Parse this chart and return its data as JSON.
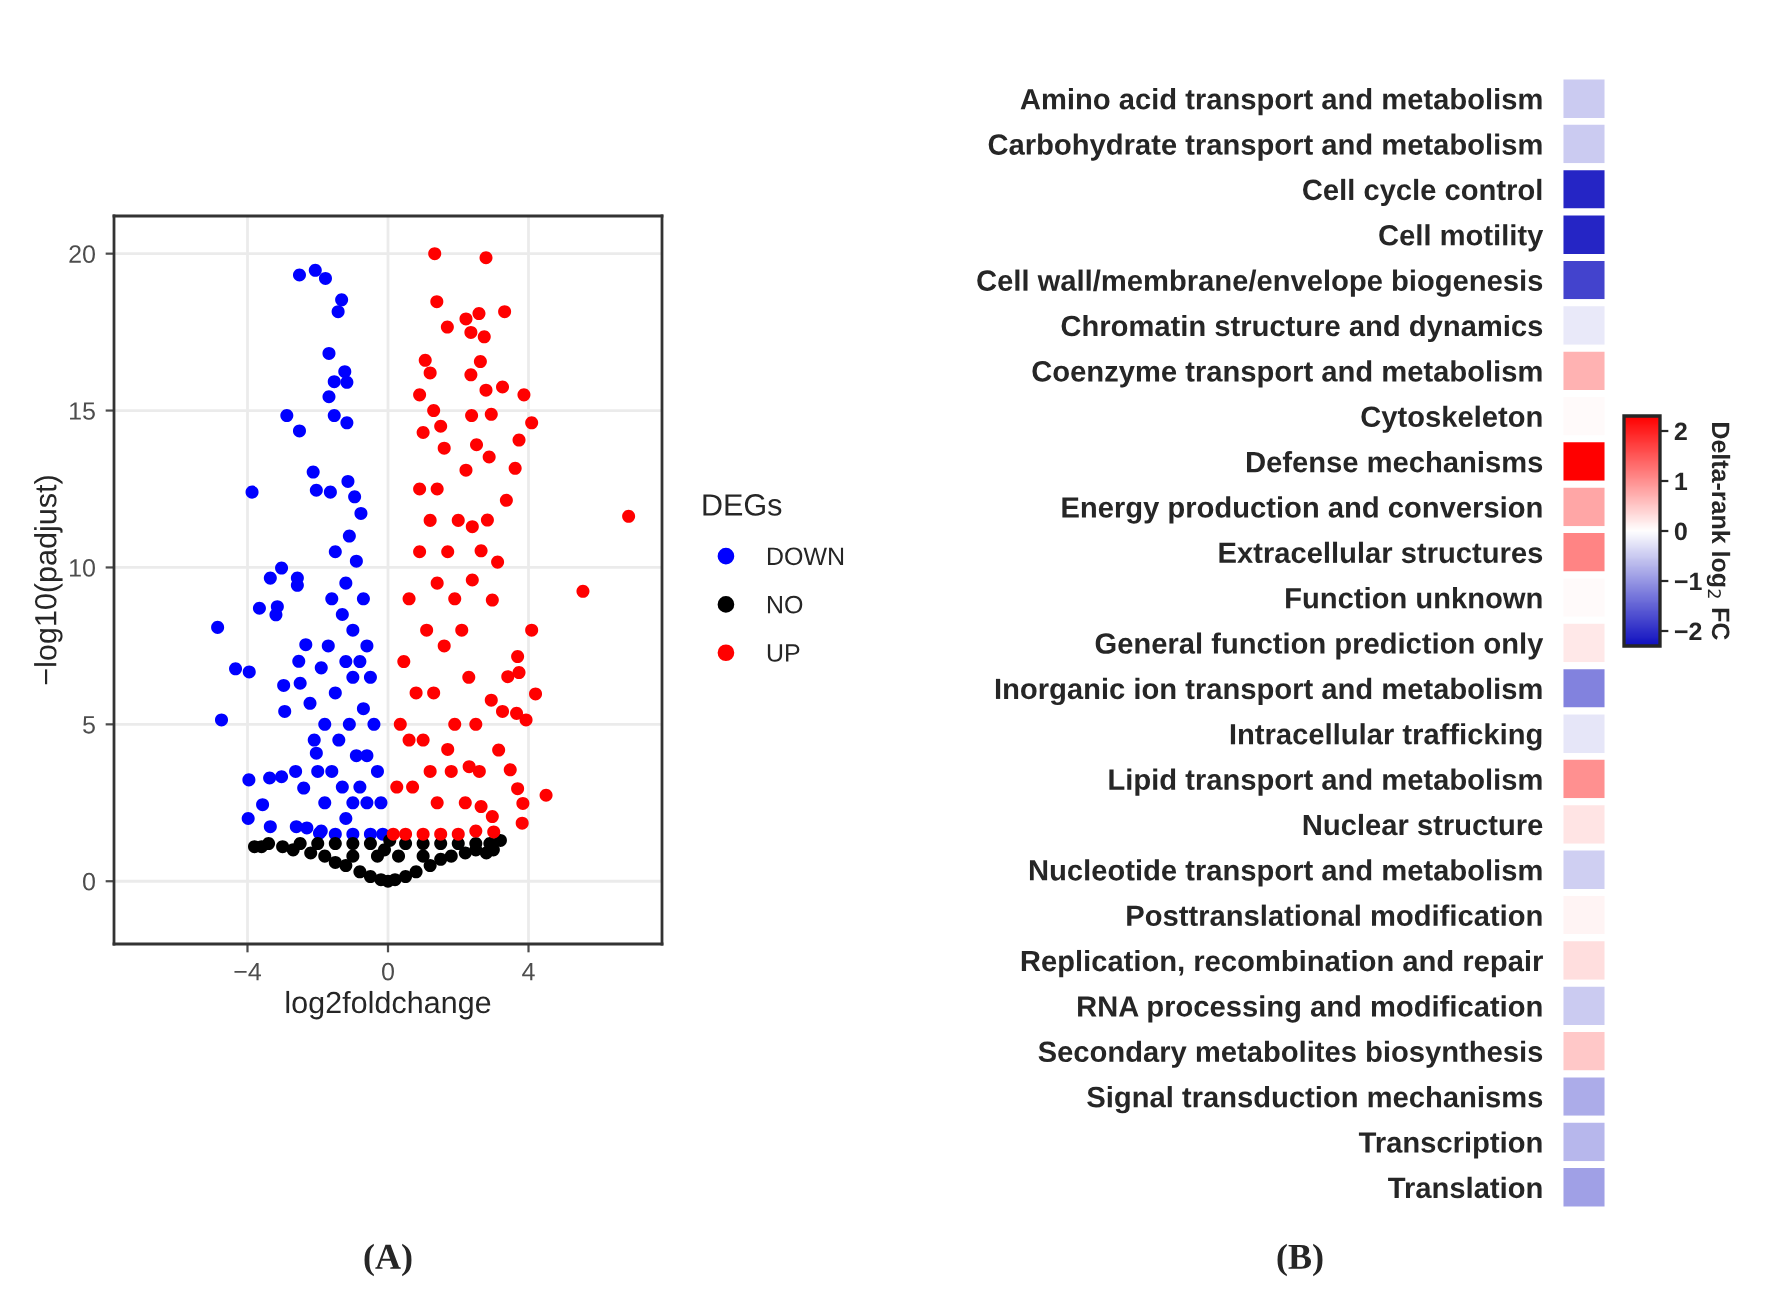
{
  "chart_data": [
    {
      "type": "scatter",
      "xlabel": "log2foldchange",
      "ylabel": "−log10(padjust)",
      "legend_title": "DEGs",
      "legend": "right",
      "grid": true,
      "marker": "circle",
      "xlim": [
        -7.8,
        7.8
      ],
      "ylim": [
        -2,
        21.2
      ],
      "xticks": [
        {
          "value": -4,
          "label": "−4"
        },
        0,
        4
      ],
      "yticks": [
        0,
        5,
        10,
        15,
        20
      ],
      "annotations": [
        "(A)"
      ],
      "series": [
        {
          "name": "DOWN",
          "color": "#0000ff",
          "x": [
            -2.52,
            -2.07,
            -1.78,
            -1.32,
            -1.42,
            -1.68,
            -1.23,
            -1.17,
            -1.53,
            -1.68,
            -2.88,
            -1.53,
            -1.17,
            -2.52,
            -3.87,
            -2.13,
            -2.04,
            -1.64,
            -1.14,
            -0.95,
            -0.77,
            -3.03,
            -3.35,
            -2.58,
            -2.58,
            -3.66,
            -3.15,
            -3.19,
            -4.85,
            -2.34,
            -4.34,
            -3.95,
            -2.97,
            -2.5,
            -2.54,
            -2.94,
            -4.74,
            -2.22,
            -2.04,
            -3.96,
            -3.37,
            -3.03,
            -2.63,
            -2.4,
            -3.57,
            -3.98,
            -3.35,
            -2.61,
            -2.31,
            -1.95,
            -1.9,
            -1.5,
            -1.0,
            -0.5,
            -0.15,
            -0.2,
            -0.3,
            -0.4,
            -0.5,
            -0.6,
            -0.7,
            -0.9,
            -1.1,
            -1.0,
            -1.2,
            -1.5,
            -1.8,
            -2.0,
            -1.8,
            -1.3,
            -0.9,
            -0.7,
            -1.1,
            -1.4,
            -1.6,
            -1.2,
            -0.6,
            -0.8,
            -1.0,
            -0.8,
            -1.3,
            -1.6,
            -1.7,
            -1.9,
            -2.1,
            -1.5,
            -1.2,
            -0.6,
            -1.0
          ],
          "values": [
            19.32,
            19.47,
            19.21,
            18.53,
            18.15,
            16.82,
            16.24,
            15.9,
            15.92,
            15.44,
            14.84,
            14.84,
            14.61,
            14.35,
            12.4,
            13.04,
            12.46,
            12.4,
            12.74,
            12.25,
            11.72,
            9.98,
            9.66,
            9.66,
            9.43,
            8.7,
            8.75,
            8.49,
            8.09,
            7.54,
            6.77,
            6.67,
            6.24,
            6.31,
            7.01,
            5.41,
            5.14,
            5.67,
            4.08,
            3.23,
            3.29,
            3.33,
            3.5,
            2.97,
            2.44,
            2.0,
            1.74,
            1.74,
            1.7,
            1.53,
            1.6,
            1.5,
            1.5,
            1.5,
            1.5,
            2.5,
            3.5,
            5.0,
            6.5,
            7.5,
            9.0,
            10.2,
            11.0,
            8.0,
            7.0,
            6.0,
            5.0,
            3.5,
            2.5,
            3.0,
            4.0,
            5.5,
            5.0,
            4.5,
            3.5,
            2.0,
            2.5,
            3.0,
            6.5,
            7.0,
            8.5,
            9.0,
            7.5,
            6.8,
            4.5,
            10.5,
            9.5,
            4.0,
            2.5
          ]
        },
        {
          "name": "NO",
          "color": "#000000",
          "x": [
            -3.8,
            -3.6,
            -3.4,
            -3.0,
            -2.7,
            -2.5,
            -2.2,
            -2.0,
            -1.8,
            -1.5,
            -1.5,
            -1.2,
            -1.0,
            -0.8,
            -0.5,
            -0.5,
            -0.2,
            -0.1,
            0,
            0.2,
            0.05,
            0.5,
            0.5,
            0.8,
            1.0,
            1.2,
            1.5,
            1.5,
            1.8,
            2.0,
            2.2,
            2.5,
            2.5,
            2.8,
            3.0,
            3.2,
            2.9,
            -0.3,
            0.3,
            -1.0,
            1.0
          ],
          "values": [
            1.1,
            1.1,
            1.2,
            1.1,
            1.0,
            1.2,
            0.9,
            1.2,
            0.8,
            0.6,
            1.2,
            0.5,
            1.2,
            0.3,
            0.15,
            1.2,
            0.05,
            1.0,
            0,
            0.05,
            1.3,
            0.15,
            1.2,
            0.3,
            1.2,
            0.5,
            0.7,
            1.2,
            0.8,
            1.2,
            0.9,
            1.0,
            1.2,
            0.9,
            1.0,
            1.3,
            1.2,
            0.8,
            0.8,
            0.8,
            0.8
          ]
        },
        {
          "name": "UP",
          "color": "#ff0000",
          "x": [
            1.33,
            2.79,
            1.39,
            3.32,
            2.59,
            2.22,
            1.69,
            2.74,
            2.36,
            2.63,
            1.06,
            2.36,
            3.26,
            3.87,
            2.79,
            4.09,
            2.94,
            2.38,
            3.73,
            2.52,
            2.88,
            3.62,
            2.22,
            3.37,
            2.83,
            6.85,
            2.4,
            2.65,
            3.12,
            5.55,
            2.97,
            4.09,
            3.69,
            3.73,
            3.41,
            4.2,
            2.94,
            3.26,
            3.66,
            3.93,
            3.15,
            3.48,
            4.5,
            3.69,
            3.84,
            3.82,
            2.97,
            3.01,
            2.31,
            2.65,
            0.15,
            0.5,
            1.0,
            1.5,
            2.0,
            2.5,
            0.25,
            0.35,
            0.45,
            0.6,
            0.9,
            1.2,
            1.4,
            1.6,
            1.0,
            0.9,
            1.2,
            0.7,
            1.0,
            1.3,
            1.6,
            1.9,
            2.1,
            2.3,
            2.5,
            2.6,
            2.2,
            1.8,
            1.4,
            0.8,
            1.1,
            1.4,
            1.7,
            2.0,
            1.9,
            0.6,
            1.2,
            1.7,
            2.4,
            0.9,
            1.5,
            1.3
          ],
          "values": [
            20.0,
            19.87,
            18.47,
            18.15,
            18.09,
            17.92,
            17.66,
            17.35,
            17.49,
            16.56,
            16.6,
            16.14,
            15.75,
            15.5,
            15.65,
            14.61,
            14.88,
            14.84,
            14.06,
            13.91,
            13.52,
            13.16,
            13.1,
            12.14,
            11.51,
            11.63,
            11.3,
            10.53,
            10.17,
            9.24,
            8.96,
            8.0,
            7.16,
            6.65,
            6.52,
            5.97,
            5.77,
            5.41,
            5.35,
            5.14,
            4.18,
            3.55,
            2.74,
            2.95,
            2.48,
            1.85,
            2.06,
            1.57,
            3.65,
            2.38,
            1.5,
            1.5,
            1.5,
            1.5,
            1.5,
            1.6,
            3.0,
            5.0,
            7.0,
            9.0,
            10.5,
            11.5,
            12.5,
            13.8,
            14.3,
            15.5,
            16.2,
            3.0,
            4.5,
            6.0,
            7.5,
            9.0,
            8.0,
            6.5,
            5.0,
            3.5,
            2.5,
            3.5,
            2.5,
            6.0,
            8.0,
            9.5,
            10.5,
            11.5,
            5.0,
            4.5,
            3.5,
            4.2,
            9.6,
            12.5,
            14.5,
            15.0
          ]
        }
      ]
    },
    {
      "type": "heatmap",
      "categories": [
        null
      ],
      "y_categories": [
        "Amino acid transport and metabolism",
        "Carbohydrate transport and metabolism",
        "Cell cycle control",
        "Cell motility",
        "Cell wall/membrane/envelope biogenesis",
        "Chromatin structure and dynamics",
        "Coenzyme transport and metabolism",
        "Cytoskeleton",
        "Defense mechanisms",
        "Energy production and conversion",
        "Extracellular structures",
        "Function unknown",
        "General function prediction only",
        "Inorganic ion transport and metabolism",
        "Intracellular trafficking",
        "Lipid transport and metabolism",
        "Nuclear structure",
        "Nucleotide transport and metabolism",
        "Posttranslational modification",
        "Replication, recombination and repair",
        "RNA processing and modification",
        "Secondary metabolites biosynthesis",
        "Signal transduction mechanisms",
        "Transcription",
        "Translation"
      ],
      "cells": [
        [
          -0.5
        ],
        [
          -0.5
        ],
        [
          -2.1
        ],
        [
          -2.1
        ],
        [
          -1.8
        ],
        [
          -0.2
        ],
        [
          0.7
        ],
        [
          0.05
        ],
        [
          2.3
        ],
        [
          0.8
        ],
        [
          1.1
        ],
        [
          0.05
        ],
        [
          0.2
        ],
        [
          -1.2
        ],
        [
          -0.25
        ],
        [
          1.0
        ],
        [
          0.25
        ],
        [
          -0.45
        ],
        [
          0.1
        ],
        [
          0.3
        ],
        [
          -0.5
        ],
        [
          0.5
        ],
        [
          -0.8
        ],
        [
          -0.7
        ],
        [
          -0.9
        ]
      ],
      "clim": [
        -2.3,
        2.3
      ],
      "cticks": [
        2,
        1,
        0,
        {
          "value": -1,
          "label": "−1"
        },
        {
          "value": -2,
          "label": "−2"
        }
      ],
      "clabel": "Delta-rank log$_{2}$ FC",
      "annotations": [
        "(B)"
      ]
    }
  ]
}
